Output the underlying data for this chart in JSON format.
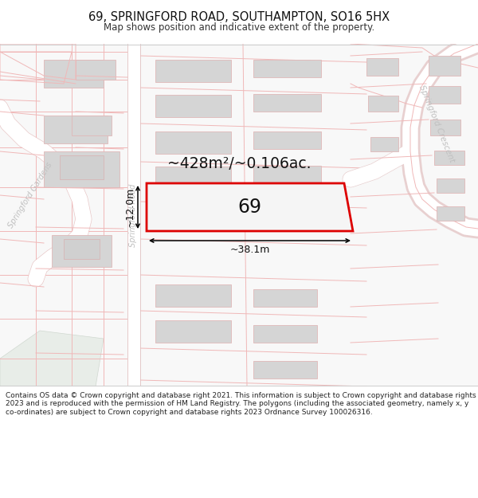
{
  "title": "69, SPRINGFORD ROAD, SOUTHAMPTON, SO16 5HX",
  "subtitle": "Map shows position and indicative extent of the property.",
  "footer": "Contains OS data © Crown copyright and database right 2021. This information is subject to Crown copyright and database rights 2023 and is reproduced with the permission of HM Land Registry. The polygons (including the associated geometry, namely x, y co-ordinates) are subject to Crown copyright and database rights 2023 Ordnance Survey 100026316.",
  "plot_outline_color": "#dd0000",
  "road_pink": "#f5c0c0",
  "road_line_color": "#f0b8b8",
  "building_fill": "#d8d8d8",
  "road_label_color": "#c0c0c0",
  "area_text": "~428m²/~0.106ac.",
  "dim_width": "~38.1m",
  "dim_height": "~12.0m",
  "number_label": "69",
  "map_bg": "#ffffff",
  "parcel_bg": "#f7f7f7",
  "road_white": "#ffffff",
  "title_fontsize": 10.5,
  "subtitle_fontsize": 8.5,
  "footer_fontsize": 6.5
}
